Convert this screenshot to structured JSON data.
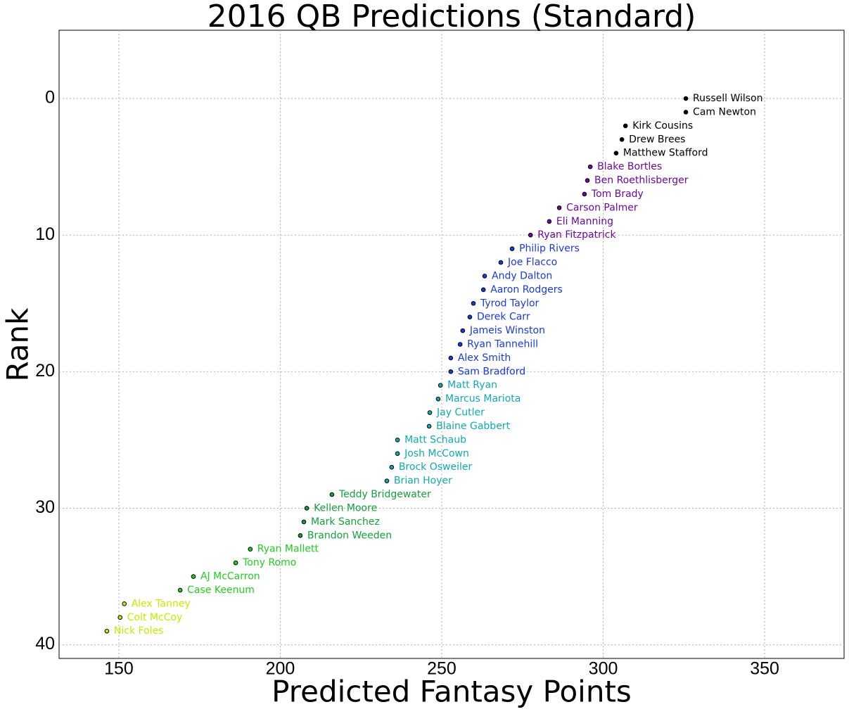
{
  "chart_data": {
    "type": "scatter",
    "title": "2016 QB Predictions (Standard)",
    "x_label": "Predicted Fantasy Points",
    "y_label": "Rank",
    "xlim": [
      131.5,
      374.6
    ],
    "ylim": [
      41,
      -5
    ],
    "xticks": [
      150,
      200,
      250,
      300,
      350
    ],
    "yticks": [
      0,
      10,
      20,
      30,
      40
    ],
    "grid": true,
    "labels": [
      "Russell Wilson",
      "Cam Newton",
      "Kirk Cousins",
      "Drew Brees",
      "Matthew Stafford",
      "Blake Bortles",
      "Ben Roethlisberger",
      "Tom Brady",
      "Carson Palmer",
      "Eli Manning",
      "Ryan Fitzpatrick",
      "Philip Rivers",
      "Joe Flacco",
      "Andy Dalton",
      "Aaron Rodgers",
      "Tyrod Taylor",
      "Derek Carr",
      "Jameis Winston",
      "Ryan Tannehill",
      "Alex Smith",
      "Sam Bradford",
      "Matt Ryan",
      "Marcus Mariota",
      "Jay Cutler",
      "Blaine Gabbert",
      "Matt Schaub",
      "Josh McCown",
      "Brock Osweiler",
      "Brian Hoyer",
      "Teddy Bridgewater",
      "Kellen Moore",
      "Mark Sanchez",
      "Brandon Weeden",
      "Ryan Mallett",
      "Tony Romo",
      "AJ McCarron",
      "Case Keenum",
      "Alex Tanney",
      "Colt McCoy",
      "Nick Foles"
    ],
    "x": [
      325.6,
      325.6,
      306.9,
      305.8,
      304.0,
      296.0,
      295.1,
      294.2,
      286.4,
      283.3,
      277.5,
      271.8,
      268.3,
      263.3,
      262.9,
      259.8,
      258.7,
      256.5,
      255.7,
      252.8,
      252.8,
      249.6,
      248.9,
      246.3,
      246.1,
      236.3,
      236.3,
      234.5,
      233.0,
      216.0,
      208.2,
      207.3,
      206.2,
      190.7,
      186.2,
      173.1,
      169.0,
      151.7,
      150.4,
      146.3
    ],
    "y": [
      0,
      1,
      2,
      3,
      4,
      5,
      6,
      7,
      8,
      9,
      10,
      11,
      12,
      13,
      14,
      15,
      16,
      17,
      18,
      19,
      20,
      21,
      22,
      23,
      24,
      25,
      26,
      27,
      28,
      29,
      30,
      31,
      32,
      33,
      34,
      35,
      36,
      37,
      38,
      39
    ],
    "colors": [
      "#000000",
      "#000000",
      "#000000",
      "#000000",
      "#000000",
      "#6a0a9a",
      "#6a0a9a",
      "#6a0a9a",
      "#6a0a9a",
      "#6a0a9a",
      "#6a0a9a",
      "#1a3adb",
      "#1a3adb",
      "#1a3adb",
      "#1a3adb",
      "#1a3adb",
      "#1a3adb",
      "#1a3adb",
      "#1a3adb",
      "#1a3adb",
      "#1a3adb",
      "#12a8b0",
      "#12a8b0",
      "#12a8b0",
      "#12a8b0",
      "#12a8b0",
      "#12a8b0",
      "#12a8b0",
      "#12a8b0",
      "#14a03c",
      "#14a03c",
      "#14a03c",
      "#14a03c",
      "#22cc22",
      "#22cc22",
      "#22cc22",
      "#22cc22",
      "#c8e800",
      "#c8e800",
      "#c8e800"
    ]
  }
}
